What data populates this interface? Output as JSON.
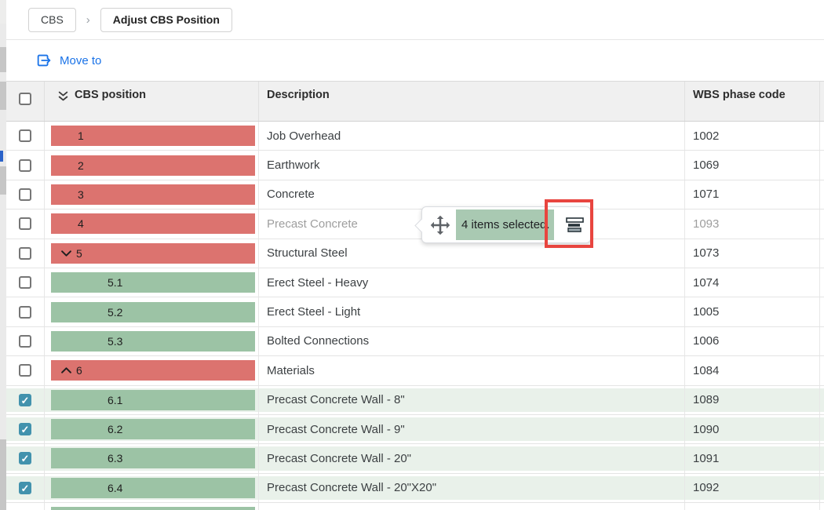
{
  "breadcrumb": {
    "root": "CBS",
    "separator": "›",
    "current": "Adjust CBS Position"
  },
  "toolbar": {
    "move_to": "Move to"
  },
  "table": {
    "headers": {
      "position": "CBS position",
      "description": "Description",
      "wbs": "WBS phase code"
    },
    "rows": [
      {
        "position": "1",
        "description": "Job Overhead",
        "wbs": "1002",
        "bar": "red",
        "level": 1,
        "chevron": null,
        "checked": false,
        "selected": false,
        "dragging": false,
        "partial": false
      },
      {
        "position": "2",
        "description": "Earthwork",
        "wbs": "1069",
        "bar": "red",
        "level": 1,
        "chevron": null,
        "checked": false,
        "selected": false,
        "dragging": false,
        "partial": false
      },
      {
        "position": "3",
        "description": "Concrete",
        "wbs": "1071",
        "bar": "red",
        "level": 1,
        "chevron": null,
        "checked": false,
        "selected": false,
        "dragging": false,
        "partial": false
      },
      {
        "position": "4",
        "description": "Precast Concrete",
        "wbs": "1093",
        "bar": "red",
        "level": 1,
        "chevron": null,
        "checked": false,
        "selected": false,
        "dragging": true,
        "partial": false
      },
      {
        "position": "5",
        "description": "Structural Steel",
        "wbs": "1073",
        "bar": "red",
        "level": 1,
        "chevron": "down",
        "checked": false,
        "selected": false,
        "dragging": false,
        "partial": false
      },
      {
        "position": "5.1",
        "description": "Erect Steel - Heavy",
        "wbs": "1074",
        "bar": "green",
        "level": 2,
        "chevron": null,
        "checked": false,
        "selected": false,
        "dragging": false,
        "partial": false
      },
      {
        "position": "5.2",
        "description": "Erect Steel - Light",
        "wbs": "1005",
        "bar": "green",
        "level": 2,
        "chevron": null,
        "checked": false,
        "selected": false,
        "dragging": false,
        "partial": false
      },
      {
        "position": "5.3",
        "description": "Bolted Connections",
        "wbs": "1006",
        "bar": "green",
        "level": 2,
        "chevron": null,
        "checked": false,
        "selected": false,
        "dragging": false,
        "partial": false
      },
      {
        "position": "6",
        "description": "Materials",
        "wbs": "1084",
        "bar": "red",
        "level": 1,
        "chevron": "up",
        "checked": false,
        "selected": false,
        "dragging": false,
        "partial": false
      },
      {
        "position": "6.1",
        "description": "Precast Concrete Wall - 8\"",
        "wbs": "1089",
        "bar": "green",
        "level": 2,
        "chevron": null,
        "checked": true,
        "selected": true,
        "dragging": false,
        "partial": false
      },
      {
        "position": "6.2",
        "description": "Precast Concrete Wall - 9\"",
        "wbs": "1090",
        "bar": "green",
        "level": 2,
        "chevron": null,
        "checked": true,
        "selected": true,
        "dragging": false,
        "partial": false
      },
      {
        "position": "6.3",
        "description": "Precast Concrete Wall - 20\"",
        "wbs": "1091",
        "bar": "green",
        "level": 2,
        "chevron": null,
        "checked": true,
        "selected": true,
        "dragging": false,
        "partial": false
      },
      {
        "position": "6.4",
        "description": "Precast Concrete Wall - 20\"X20\"",
        "wbs": "1092",
        "bar": "green",
        "level": 2,
        "chevron": null,
        "checked": true,
        "selected": true,
        "dragging": false,
        "partial": false
      },
      {
        "position": "",
        "description": "",
        "wbs": "",
        "bar": "green",
        "level": 2,
        "chevron": null,
        "checked": false,
        "selected": false,
        "dragging": false,
        "partial": true
      }
    ]
  },
  "drag_tooltip": {
    "label": "4 items selected."
  },
  "colors": {
    "bar_red": "#dc736f",
    "bar_green": "#9cc3a5",
    "selected_row": "#e9f1ea",
    "tooltip_label_bg": "#a9c9b2",
    "checkbox_checked": "#4292ad",
    "link_blue": "#1a73e8",
    "annotation_red": "#e8453f"
  }
}
